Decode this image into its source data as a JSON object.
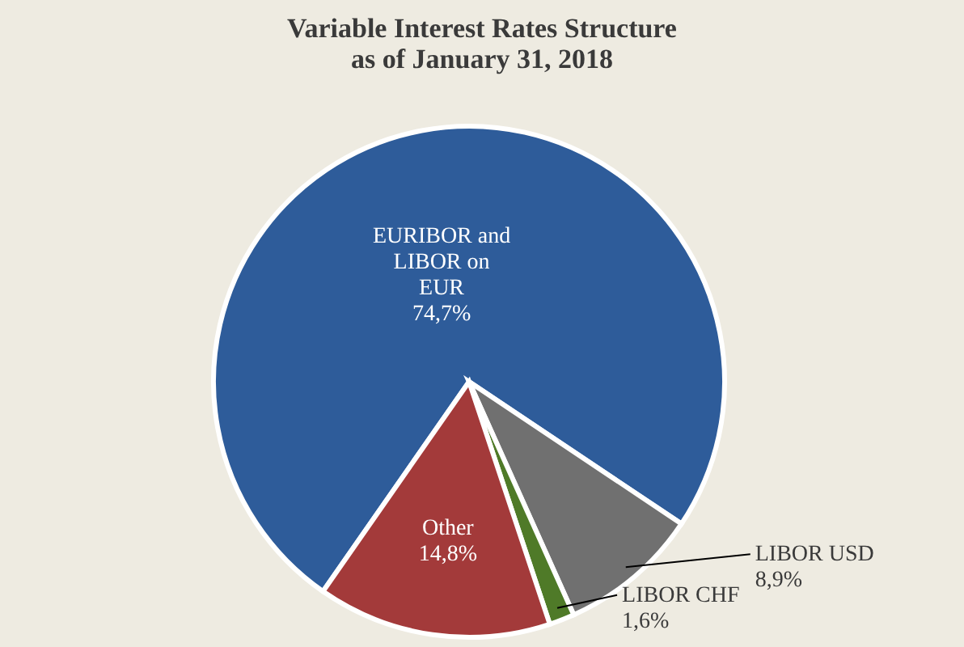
{
  "chart_data": {
    "type": "pie",
    "title": "Variable Interest Rates Structure as of January 31, 2018",
    "categories": [
      "EURIBOR and LIBOR on EUR",
      "LIBOR USD",
      "LIBOR CHF",
      "Other"
    ],
    "values": [
      74.7,
      8.9,
      1.6,
      14.8
    ],
    "value_labels": [
      "74,7%",
      "8,9%",
      "1,6%",
      "14,8%"
    ],
    "colors": [
      "#2e5c9a",
      "#707070",
      "#4f7a28",
      "#a33a3a"
    ]
  }
}
